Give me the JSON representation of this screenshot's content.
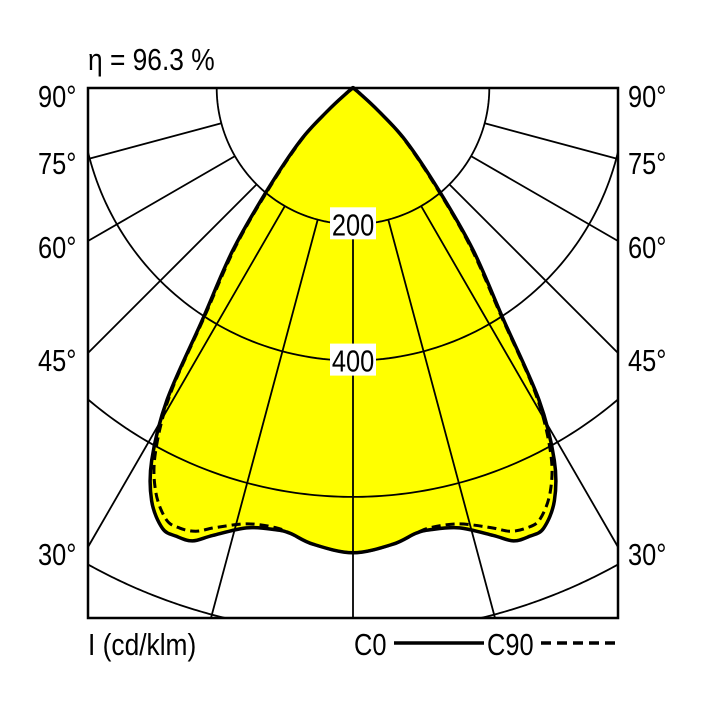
{
  "header": {
    "efficiency": "η = 96.3 %"
  },
  "footer": {
    "unit": "I (cd/klm)",
    "legend_c0": "C0",
    "legend_c90": "C90"
  },
  "chart_data": {
    "type": "polar",
    "title": "η = 96.3 %",
    "unit_label": "I (cd/klm)",
    "radial_ticks": [
      200,
      400,
      600,
      800
    ],
    "radial_tick_labels": [
      "200",
      "400"
    ],
    "angle_ticks": [
      0,
      15,
      30,
      45,
      60,
      75,
      90
    ],
    "angle_edge_labels": [
      "90°",
      "75°",
      "60°",
      "45°",
      "30°"
    ],
    "fill_color": "#FFFF00",
    "series": [
      {
        "name": "C0",
        "style": "solid",
        "angles": [
          0,
          5,
          8,
          10,
          13.6,
          17.4,
          19.5,
          21.5,
          23.4,
          26,
          28.4,
          30.8,
          33,
          36.5,
          40,
          45,
          48,
          52,
          60,
          90
        ],
        "values": [
          682,
          672,
          660,
          658,
          664,
          688,
          705,
          707,
          704,
          674,
          621,
          533,
          406,
          297,
          196,
          109,
          50,
          10,
          0,
          0
        ]
      },
      {
        "name": "C90",
        "style": "dashed",
        "angles": [
          0,
          5,
          8,
          10,
          13.6,
          17.4,
          19.5,
          21.5,
          23.4,
          26,
          28.4,
          30.8,
          33,
          36.5,
          40,
          45,
          48,
          52,
          60,
          90
        ],
        "values": [
          682,
          672,
          660,
          655,
          658,
          676,
          690,
          694,
          690,
          660,
          610,
          525,
          400,
          290,
          190,
          105,
          48,
          10,
          0,
          0
        ]
      }
    ]
  }
}
